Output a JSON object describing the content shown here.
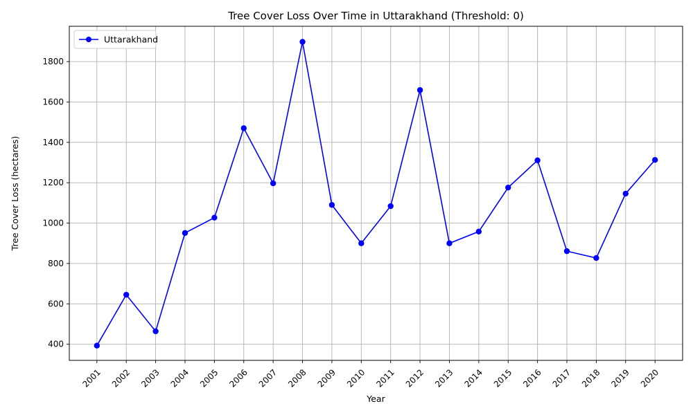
{
  "chart_data": {
    "type": "line",
    "title": "Tree Cover Loss Over Time in Uttarakhand (Threshold: 0)",
    "xlabel": "Year",
    "ylabel": "Tree Cover Loss (hectares)",
    "x": [
      "2001",
      "2002",
      "2003",
      "2004",
      "2005",
      "2006",
      "2007",
      "2008",
      "2009",
      "2010",
      "2011",
      "2012",
      "2013",
      "2014",
      "2015",
      "2016",
      "2017",
      "2018",
      "2019",
      "2020"
    ],
    "series": [
      {
        "name": "Uttarakhand",
        "color": "#0000ff",
        "marker": "circle",
        "values": [
          393,
          645,
          464,
          951,
          1027,
          1470,
          1197,
          1898,
          1090,
          900,
          1084,
          1659,
          900,
          958,
          1176,
          1311,
          861,
          827,
          1146,
          1313
        ]
      }
    ],
    "ylim": [
      320,
      1975
    ],
    "yticks": [
      400,
      600,
      800,
      1000,
      1200,
      1400,
      1600,
      1800
    ],
    "grid": true,
    "legend_position": "top-left",
    "xtick_rotation": 45
  }
}
